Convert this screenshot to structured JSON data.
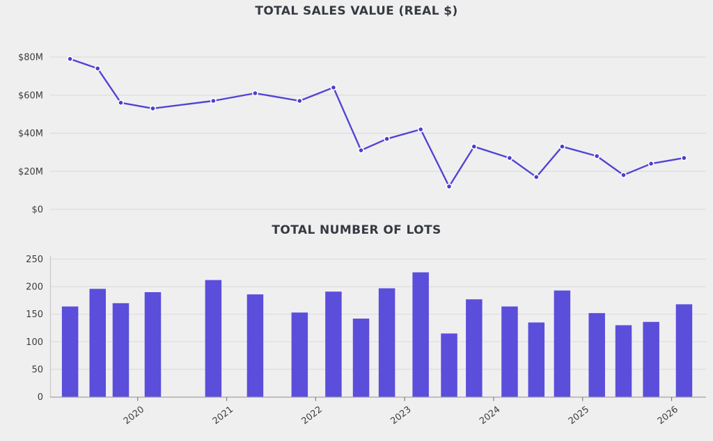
{
  "page": {
    "background_color": "#f0eff0",
    "gridline_color": "#dddcdd",
    "title_color": "#343a40",
    "tick_label_color": "#3c3c3c",
    "axis_line_color": "#a9a8a9",
    "spine_color": "#cac9ca",
    "tick_mark_color": "#7c7c7c",
    "accent_color": "#5b4edb"
  },
  "chart_data": [
    {
      "type": "line",
      "title": "TOTAL SALES VALUE (REAL $)",
      "unit": "USD millions (real $)",
      "x": [
        2019.24,
        2019.55,
        2019.81,
        2020.17,
        2020.85,
        2021.32,
        2021.82,
        2022.2,
        2022.51,
        2022.8,
        2023.18,
        2023.5,
        2023.78,
        2024.18,
        2024.48,
        2024.77,
        2025.16,
        2025.46,
        2025.77,
        2026.14
      ],
      "values": [
        79,
        74,
        56,
        53,
        57,
        61,
        57,
        64,
        31,
        37,
        42,
        12,
        33,
        27,
        17,
        33,
        28,
        18,
        24,
        27
      ],
      "xlim": [
        2019.016,
        2026.387
      ],
      "ylim": [
        0,
        88
      ],
      "yticks": [
        0,
        20,
        40,
        60,
        80
      ],
      "ytick_labels": [
        "$0",
        "$20M",
        "$40M",
        "$60M",
        "$80M"
      ],
      "xtick_labels": [],
      "grid": true,
      "legend": "none",
      "line_color": "#5044d4",
      "marker_fill": "#4b3ecf",
      "marker_edge": "#ffffff"
    },
    {
      "type": "bar",
      "title": "TOTAL NUMBER OF LOTS",
      "unit": "lots",
      "x": [
        2019.24,
        2019.55,
        2019.81,
        2020.17,
        2020.85,
        2021.32,
        2021.82,
        2022.2,
        2022.51,
        2022.8,
        2023.18,
        2023.5,
        2023.78,
        2024.18,
        2024.48,
        2024.77,
        2025.16,
        2025.46,
        2025.77,
        2026.14
      ],
      "values": [
        164,
        196,
        170,
        190,
        212,
        186,
        153,
        191,
        142,
        197,
        226,
        115,
        177,
        164,
        135,
        193,
        152,
        130,
        136,
        168
      ],
      "xlim": [
        2019.016,
        2026.387
      ],
      "ylim": [
        0,
        255
      ],
      "yticks": [
        0,
        50,
        100,
        150,
        200,
        250
      ],
      "ytick_labels": [
        "0",
        "50",
        "100",
        "150",
        "200",
        "250"
      ],
      "xticks": [
        2020,
        2021,
        2022,
        2023,
        2024,
        2025,
        2026
      ],
      "xtick_labels": [
        "2020",
        "2021",
        "2022",
        "2023",
        "2024",
        "2025",
        "2026"
      ],
      "grid": true,
      "legend": "none",
      "bar_color": "#5b4edb"
    }
  ]
}
